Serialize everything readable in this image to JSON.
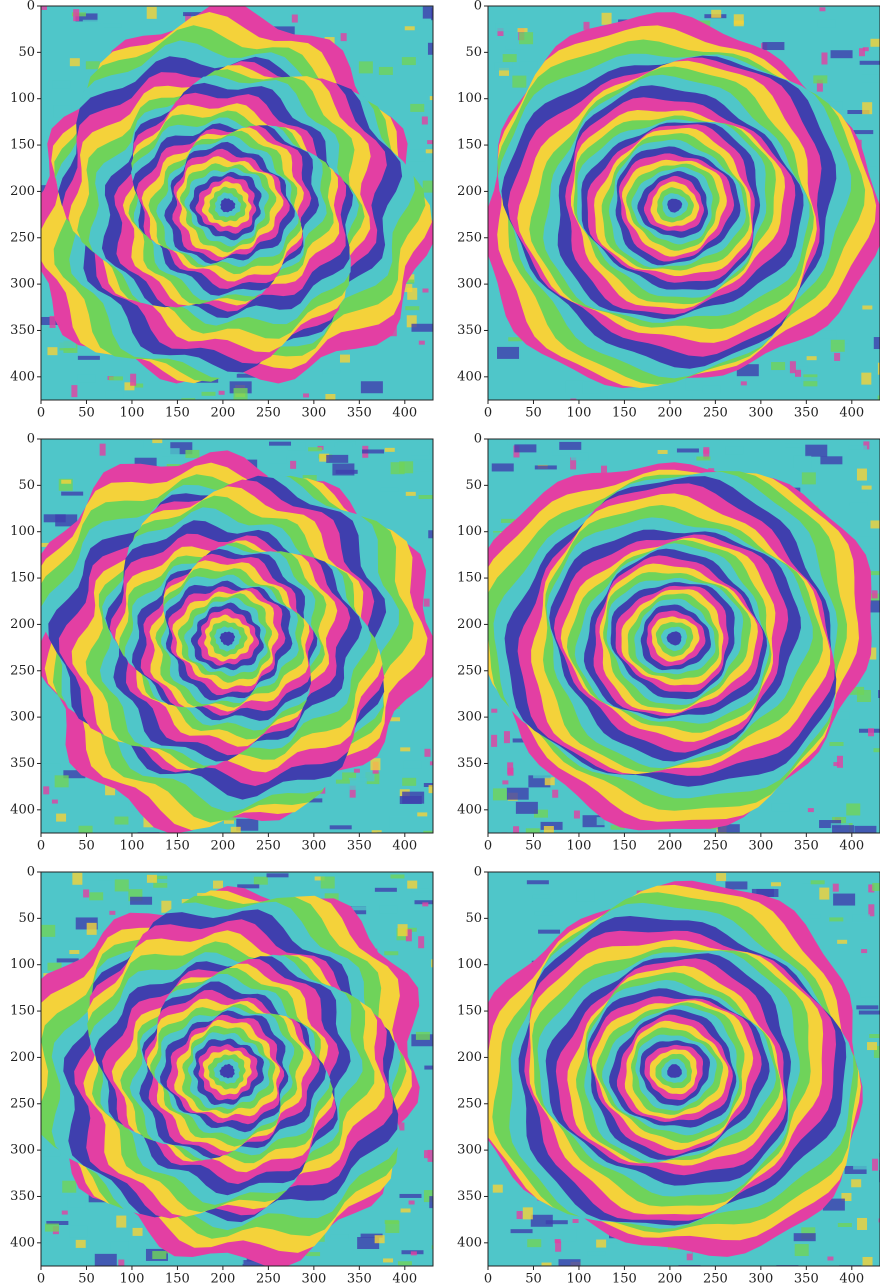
{
  "chart_data": [
    {
      "type": "image",
      "xlim": [
        0,
        431
      ],
      "ylim": [
        0,
        425
      ],
      "y_inverted": true,
      "xticks": [
        0,
        50,
        100,
        150,
        200,
        250,
        300,
        350,
        400
      ],
      "yticks": [
        0,
        50,
        100,
        150,
        200,
        250,
        300,
        350,
        400
      ],
      "colormap": [
        "#e33fa3",
        "#f4d23a",
        "#6fd35a",
        "#4fc6c9",
        "#3f3fae"
      ]
    },
    {
      "type": "image",
      "xlim": [
        0,
        431
      ],
      "ylim": [
        0,
        425
      ],
      "y_inverted": true,
      "xticks": [
        0,
        50,
        100,
        150,
        200,
        250,
        300,
        350,
        400
      ],
      "yticks": [
        0,
        50,
        100,
        150,
        200,
        250,
        300,
        350,
        400
      ],
      "colormap": [
        "#e33fa3",
        "#f4d23a",
        "#6fd35a",
        "#4fc6c9",
        "#3f3fae"
      ]
    },
    {
      "type": "image",
      "xlim": [
        0,
        431
      ],
      "ylim": [
        0,
        425
      ],
      "y_inverted": true,
      "xticks": [
        0,
        50,
        100,
        150,
        200,
        250,
        300,
        350,
        400
      ],
      "yticks": [
        0,
        50,
        100,
        150,
        200,
        250,
        300,
        350,
        400
      ],
      "colormap": [
        "#e33fa3",
        "#f4d23a",
        "#6fd35a",
        "#4fc6c9",
        "#3f3fae"
      ]
    },
    {
      "type": "image",
      "xlim": [
        0,
        431
      ],
      "ylim": [
        0,
        425
      ],
      "y_inverted": true,
      "xticks": [
        0,
        50,
        100,
        150,
        200,
        250,
        300,
        350,
        400
      ],
      "yticks": [
        0,
        50,
        100,
        150,
        200,
        250,
        300,
        350,
        400
      ],
      "colormap": [
        "#e33fa3",
        "#f4d23a",
        "#6fd35a",
        "#4fc6c9",
        "#3f3fae"
      ]
    },
    {
      "type": "image",
      "xlim": [
        0,
        431
      ],
      "ylim": [
        0,
        425
      ],
      "y_inverted": true,
      "xticks": [
        0,
        50,
        100,
        150,
        200,
        250,
        300,
        350,
        400
      ],
      "yticks": [
        0,
        50,
        100,
        150,
        200,
        250,
        300,
        350,
        400
      ],
      "colormap": [
        "#e33fa3",
        "#f4d23a",
        "#6fd35a",
        "#4fc6c9",
        "#3f3fae"
      ]
    },
    {
      "type": "image",
      "xlim": [
        0,
        431
      ],
      "ylim": [
        0,
        425
      ],
      "y_inverted": true,
      "xticks": [
        0,
        50,
        100,
        150,
        200,
        250,
        300,
        350,
        400
      ],
      "yticks": [
        0,
        50,
        100,
        150,
        200,
        250,
        300,
        350,
        400
      ],
      "colormap": [
        "#e33fa3",
        "#f4d23a",
        "#6fd35a",
        "#4fc6c9",
        "#3f3fae"
      ]
    }
  ]
}
